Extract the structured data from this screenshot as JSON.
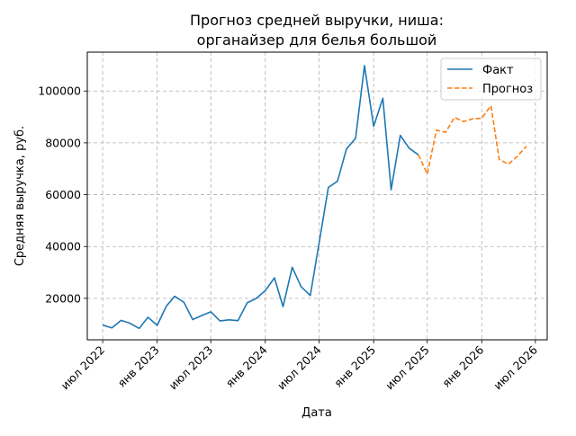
{
  "chart_data": {
    "type": "line",
    "title_lines": [
      "Прогноз средней выручки, ниша:",
      "органайзер для белья большой"
    ],
    "xlabel": "Дата",
    "ylabel": "Средняя выручка, руб.",
    "grid": true,
    "legend_position": "top-right",
    "x_ticks": [
      "июл 2022",
      "янв 2023",
      "июл 2023",
      "янв 2024",
      "июл 2024",
      "янв 2025",
      "июл 2025",
      "янв 2026",
      "июл 2026"
    ],
    "y_ticks": [
      20000,
      40000,
      60000,
      80000,
      100000
    ],
    "xlim": [
      "2022-05-10",
      "2026-08-10"
    ],
    "ylim": [
      4000,
      115000
    ],
    "series": [
      {
        "name": "Факт",
        "color": "#1f77b4",
        "style": "solid",
        "points": [
          [
            "2022-07-01",
            9700
          ],
          [
            "2022-08-01",
            8600
          ],
          [
            "2022-09-01",
            11500
          ],
          [
            "2022-10-01",
            10400
          ],
          [
            "2022-11-01",
            8400
          ],
          [
            "2022-12-01",
            12700
          ],
          [
            "2023-01-01",
            9600
          ],
          [
            "2023-02-01",
            17000
          ],
          [
            "2023-03-01",
            20800
          ],
          [
            "2023-04-01",
            18500
          ],
          [
            "2023-05-01",
            11800
          ],
          [
            "2023-06-01",
            13400
          ],
          [
            "2023-07-01",
            14800
          ],
          [
            "2023-08-01",
            11300
          ],
          [
            "2023-09-01",
            11700
          ],
          [
            "2023-10-01",
            11400
          ],
          [
            "2023-11-01",
            18300
          ],
          [
            "2023-12-01",
            19900
          ],
          [
            "2024-01-01",
            23000
          ],
          [
            "2024-02-01",
            27900
          ],
          [
            "2024-03-01",
            16800
          ],
          [
            "2024-04-01",
            32000
          ],
          [
            "2024-05-01",
            24500
          ],
          [
            "2024-06-01",
            21100
          ],
          [
            "2024-07-01",
            41500
          ],
          [
            "2024-08-01",
            62800
          ],
          [
            "2024-09-01",
            65200
          ],
          [
            "2024-10-01",
            77600
          ],
          [
            "2024-11-01",
            81800
          ],
          [
            "2024-12-01",
            109800
          ],
          [
            "2025-01-01",
            86400
          ],
          [
            "2025-02-01",
            97200
          ],
          [
            "2025-03-01",
            61900
          ],
          [
            "2025-04-01",
            82900
          ],
          [
            "2025-05-01",
            77900
          ],
          [
            "2025-06-01",
            75400
          ]
        ]
      },
      {
        "name": "Прогноз",
        "color": "#ff7f0e",
        "style": "dashed",
        "points": [
          [
            "2025-06-01",
            75400
          ],
          [
            "2025-07-01",
            68000
          ],
          [
            "2025-08-01",
            84900
          ],
          [
            "2025-09-01",
            84100
          ],
          [
            "2025-10-01",
            89800
          ],
          [
            "2025-11-01",
            88200
          ],
          [
            "2025-12-01",
            89300
          ],
          [
            "2026-01-01",
            89500
          ],
          [
            "2026-02-01",
            94300
          ],
          [
            "2026-03-01",
            73600
          ],
          [
            "2026-04-01",
            71800
          ],
          [
            "2026-05-01",
            74800
          ],
          [
            "2026-06-01",
            78700
          ]
        ]
      }
    ]
  }
}
